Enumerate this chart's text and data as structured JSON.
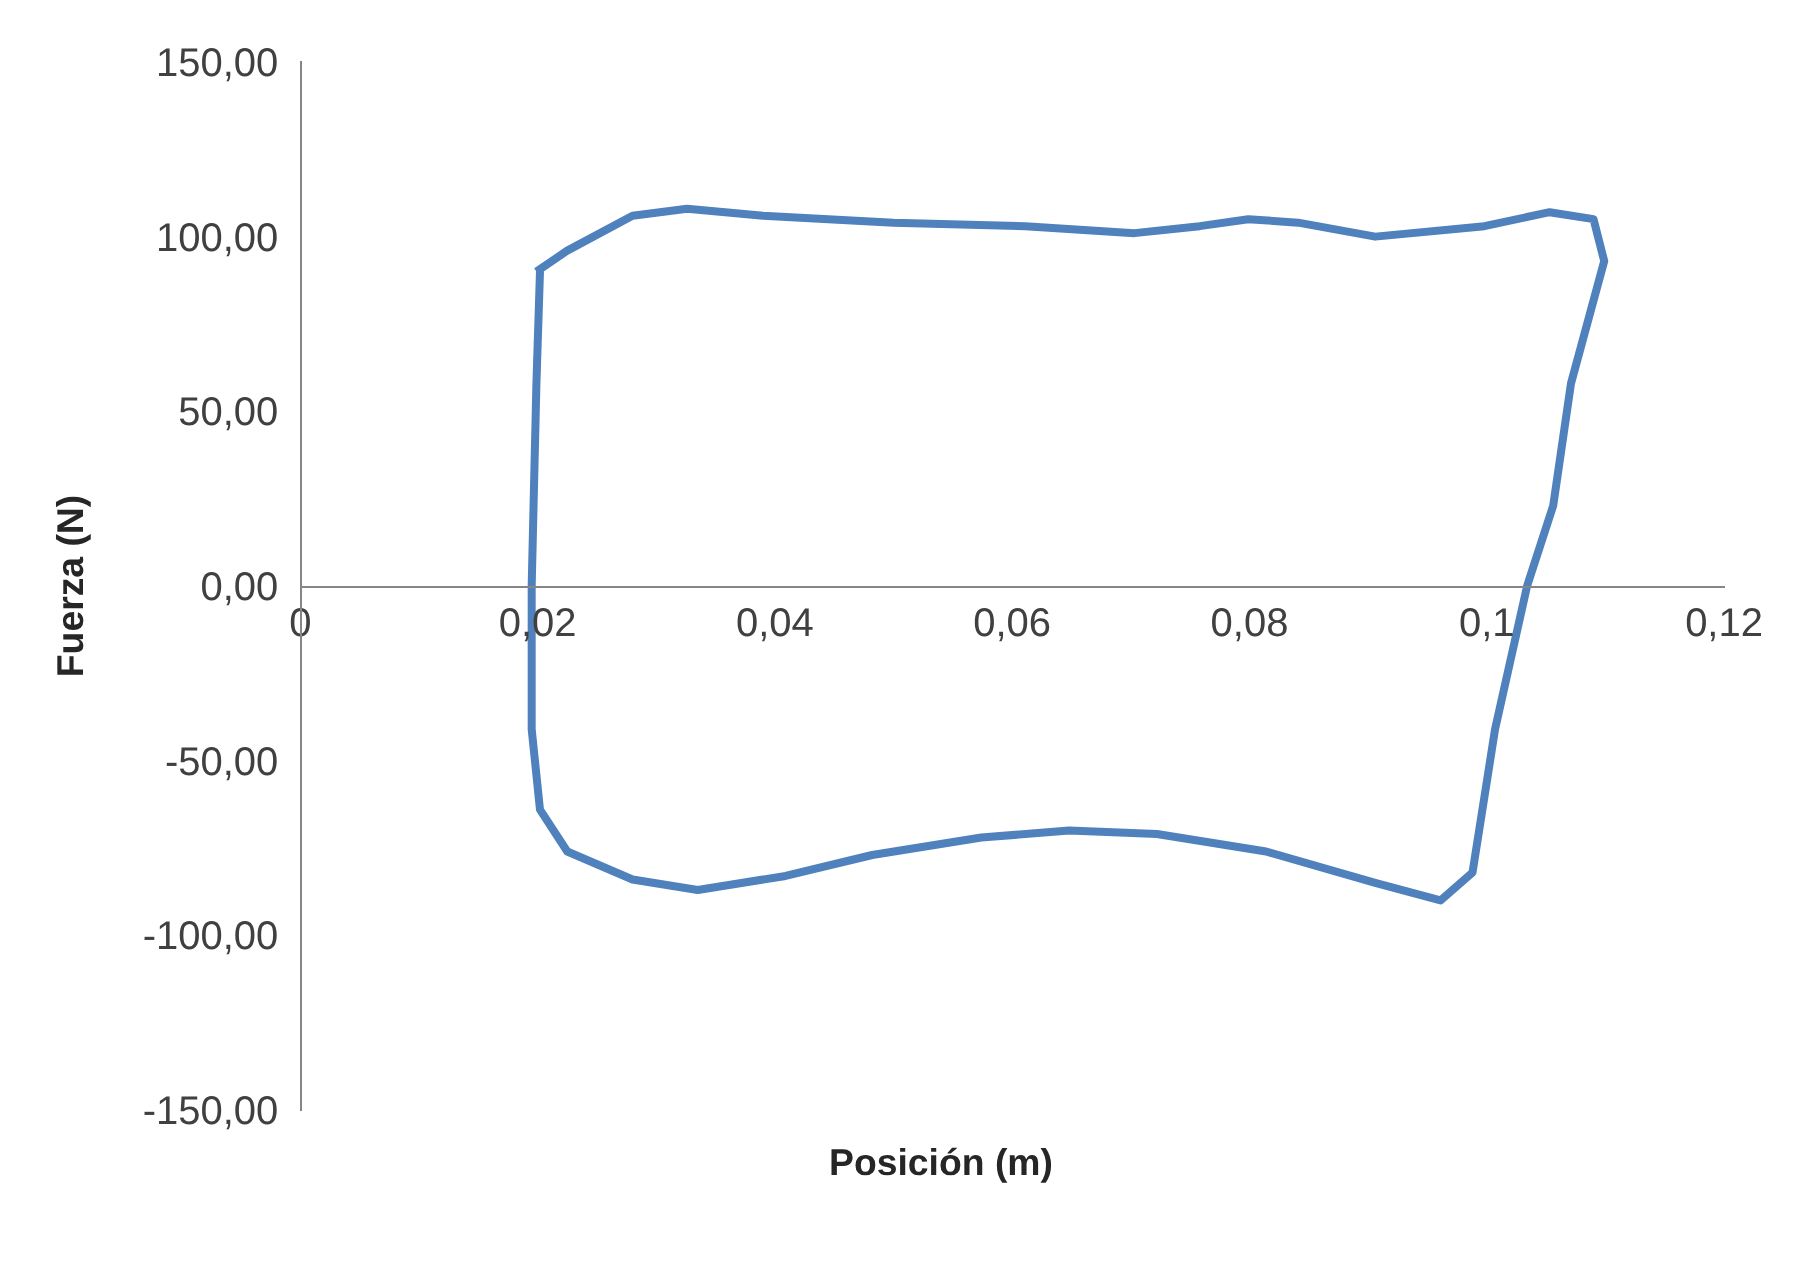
{
  "chart_data": {
    "type": "line",
    "xlabel": "Posición (m)",
    "ylabel": "Fuerza (N)",
    "xlim": [
      0,
      0.12
    ],
    "ylim": [
      -150,
      150
    ],
    "xticks": [
      {
        "value": 0,
        "label": "0"
      },
      {
        "value": 0.02,
        "label": "0,02"
      },
      {
        "value": 0.04,
        "label": "0,04"
      },
      {
        "value": 0.06,
        "label": "0,06"
      },
      {
        "value": 0.08,
        "label": "0,08"
      },
      {
        "value": 0.1,
        "label": "0,1"
      },
      {
        "value": 0.12,
        "label": "0,12"
      }
    ],
    "yticks": [
      {
        "value": -150,
        "label": "-150,00"
      },
      {
        "value": -100,
        "label": "-100,00"
      },
      {
        "value": -50,
        "label": "-50,00"
      },
      {
        "value": 0,
        "label": "0,00"
      },
      {
        "value": 50,
        "label": "50,00"
      },
      {
        "value": 100,
        "label": "100,00"
      },
      {
        "value": 150,
        "label": "150,00"
      }
    ],
    "grid": false,
    "marker": "none",
    "line_style": "solid",
    "series": [
      {
        "color": "#4f81bd",
        "x": [
          0.0199,
          0.0225,
          0.028,
          0.0326,
          0.039,
          0.05,
          0.0611,
          0.0703,
          0.0758,
          0.0799,
          0.0841,
          0.0906,
          0.0998,
          0.1053,
          0.109,
          0.1099,
          0.1071,
          0.1056,
          0.1034,
          0.1007,
          0.0988,
          0.0961,
          0.0906,
          0.0814,
          0.0722,
          0.0648,
          0.0574,
          0.0482,
          0.0409,
          0.0335,
          0.028,
          0.0225,
          0.0202,
          0.0195,
          0.0195,
          0.0199,
          0.0202
        ],
        "values": [
          90,
          96,
          106,
          108,
          106,
          104,
          103,
          101,
          103,
          105,
          104,
          100,
          103,
          107,
          105,
          93,
          58,
          23,
          0,
          -41,
          -82,
          -90,
          -85,
          -76,
          -71,
          -70,
          -72,
          -77,
          -83,
          -87,
          -84,
          -76,
          -64,
          -41,
          0,
          58,
          90
        ]
      }
    ]
  }
}
